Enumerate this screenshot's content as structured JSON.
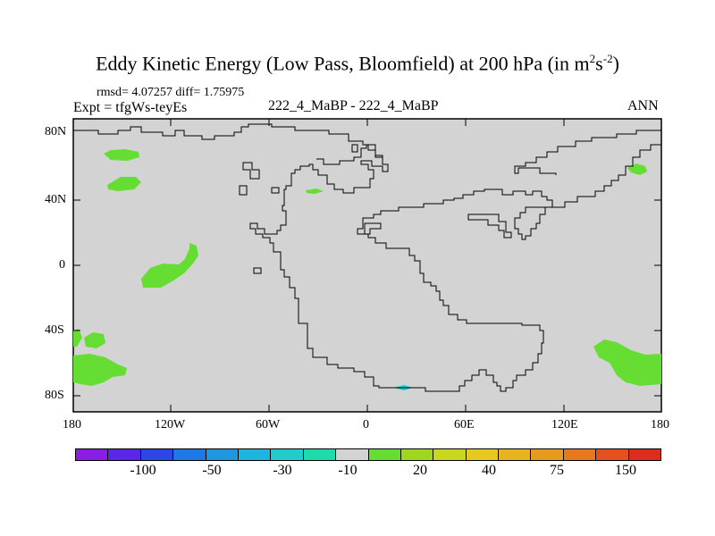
{
  "title_main": "Eddy Kinetic Energy (Low Pass, Bloomfield) at 200 hPa (in m",
  "title_sup1": "2",
  "title_mid": "s",
  "title_sup2": "-2",
  "title_end": ")",
  "stats": "rmsd= 4.07257 diff= 1.75975",
  "expt": "Expt = tfgWs-teyEs",
  "center_label": "222_4_MaBP - 222_4_MaBP",
  "season": "ANN",
  "lat_labels": [
    "80N",
    "40N",
    "0",
    "40S",
    "80S"
  ],
  "lon_labels": [
    "180",
    "120W",
    "60W",
    "0",
    "60E",
    "120E",
    "180"
  ],
  "colors": {
    "background_field": "#d3d3d3",
    "positive_anomaly": "#66dd33",
    "negative_anomaly": "#22cccc",
    "coast": "#000000"
  },
  "colorbar": {
    "colors": [
      "#8a1ee6",
      "#5a26e8",
      "#2f46e6",
      "#1e78e6",
      "#1e96e0",
      "#1eb4e0",
      "#22cccc",
      "#1edcaa",
      "#d3d3d3",
      "#66dd33",
      "#a0d61e",
      "#c8d61e",
      "#e6c81e",
      "#e6b41e",
      "#e69a1e",
      "#e6781e",
      "#e6501e",
      "#dd2d1e"
    ],
    "labels": [
      "-100",
      "-50",
      "-30",
      "-10",
      "20",
      "40",
      "75",
      "150"
    ]
  }
}
